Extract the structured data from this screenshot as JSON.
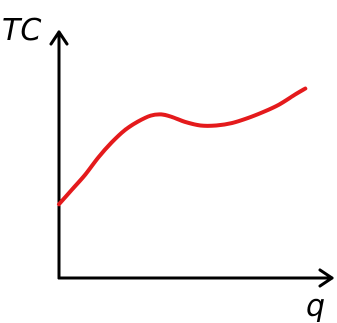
{
  "chart_data": {
    "type": "line",
    "ylabel": "TC",
    "xlabel": "q",
    "xlim": [
      0,
      10
    ],
    "ylim": [
      0,
      10
    ],
    "grid": false,
    "legend": "none",
    "series": [
      {
        "color": "#e41a1c",
        "x": [
          0,
          0.5,
          1,
          1.5,
          2,
          2.5,
          3,
          3.5,
          3.9,
          4.3,
          4.8,
          5.4,
          6,
          6.6,
          7.2,
          7.8,
          8.4,
          9,
          9.4
        ],
        "y": [
          3.0,
          3.6,
          4.2,
          4.9,
          5.5,
          6.0,
          6.35,
          6.6,
          6.65,
          6.55,
          6.35,
          6.2,
          6.2,
          6.3,
          6.5,
          6.75,
          7.05,
          7.45,
          7.7
        ]
      }
    ],
    "axes_color": "#000000"
  }
}
